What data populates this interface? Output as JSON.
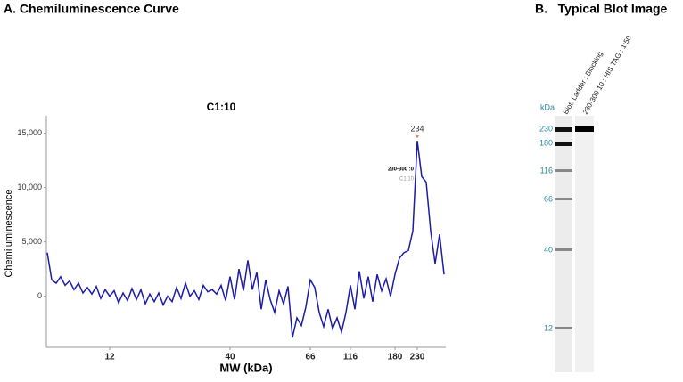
{
  "panel_a_title": "A. Chemiluminescence Curve",
  "panel_b_title": "B.   Typical Blot Image",
  "chart_data": {
    "type": "line",
    "title": "C1:10",
    "x_label": "MW (kDa)",
    "y_label": "Chemiluminescence",
    "color": "#1c1ca8",
    "categories": [
      null,
      null,
      null,
      null,
      null,
      null,
      null,
      null,
      null,
      null,
      null,
      null,
      null,
      null,
      "12",
      null,
      null,
      null,
      null,
      null,
      null,
      null,
      null,
      null,
      null,
      null,
      null,
      null,
      null,
      null,
      null,
      null,
      null,
      null,
      null,
      null,
      null,
      null,
      null,
      null,
      null,
      "40",
      null,
      null,
      null,
      null,
      null,
      null,
      null,
      null,
      null,
      null,
      null,
      null,
      null,
      null,
      null,
      null,
      null,
      "66",
      null,
      null,
      null,
      null,
      null,
      null,
      null,
      null,
      "116",
      null,
      null,
      null,
      null,
      null,
      null,
      null,
      null,
      null,
      "180",
      null,
      null,
      null,
      null,
      "230",
      null,
      null,
      null,
      null,
      null,
      null
    ],
    "values": [
      4000,
      1500,
      1200,
      1800,
      1000,
      1400,
      600,
      1200,
      300,
      800,
      200,
      900,
      -200,
      600,
      0,
      500,
      -600,
      300,
      -400,
      700,
      -300,
      600,
      -700,
      200,
      -500,
      300,
      -800,
      0,
      -500,
      800,
      -200,
      1200,
      0,
      500,
      -300,
      1000,
      400,
      600,
      200,
      1000,
      -400,
      1800,
      -300,
      2500,
      500,
      3300,
      600,
      2200,
      -1200,
      1500,
      -300,
      -1500,
      500,
      -700,
      900,
      -3800,
      -2000,
      -2700,
      -1000,
      1500,
      800,
      -1500,
      -2800,
      -1200,
      -3000,
      -2000,
      -3300,
      -1500,
      1000,
      -1200,
      2300,
      -200,
      1800,
      -500,
      2000,
      500,
      1600,
      0,
      2000,
      3500,
      4000,
      4200,
      6000,
      14300,
      11000,
      10500,
      6000,
      3000,
      5700,
      2000
    ],
    "ylim": [
      -4700,
      16600
    ],
    "yticks": [
      0,
      {
        "value": 5000,
        "label": "5,000"
      },
      {
        "value": 10000,
        "label": "10,000"
      },
      {
        "value": 15000,
        "label": "15,000"
      }
    ],
    "annotations": [
      "234",
      "230-300 :0",
      "C1:10"
    ]
  },
  "blot": {
    "unit": "kDa",
    "lanes": [
      "Biot. Ladder : Blocking",
      "230-300 10 : HIS TAG : 1:50"
    ],
    "markers": [
      "230",
      "180",
      "116",
      "66",
      "40",
      "12"
    ]
  }
}
